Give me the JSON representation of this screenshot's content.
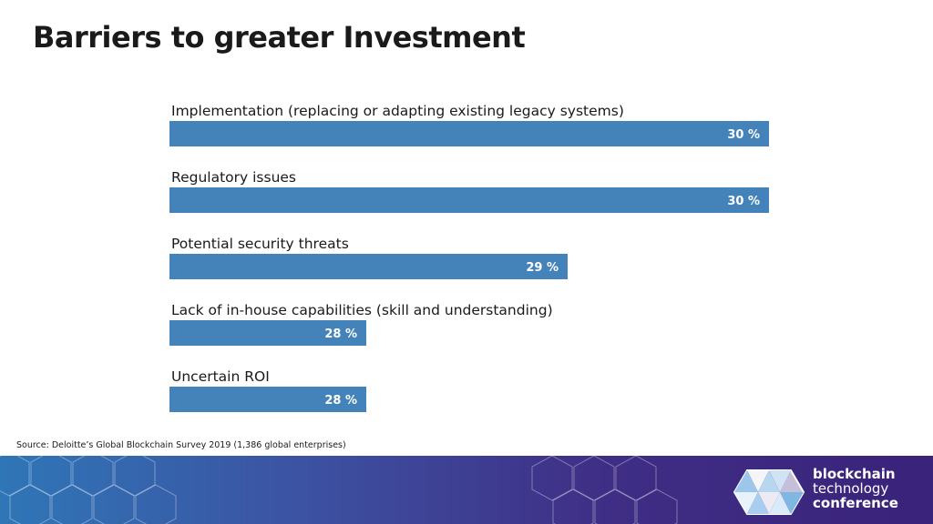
{
  "slide": {
    "title": "Barriers to greater Investment",
    "source": "Source: Deloitte’s Global Blockchain Survey 2019 (1,386 global enterprises)"
  },
  "chart_data": {
    "type": "bar",
    "orientation": "horizontal",
    "categories": [
      "Implementation (replacing or adapting existing legacy systems)",
      "Regulatory issues",
      "Potential security threats",
      "Lack of in-house capabilities (skill and understanding)",
      "Uncertain ROI"
    ],
    "values": [
      30,
      30,
      29,
      28,
      28
    ],
    "value_labels": [
      "30 %",
      "30 %",
      "29 %",
      "28 %",
      "28 %"
    ],
    "bar_color": "#4483b9",
    "xlim": [
      27,
      30
    ],
    "grid": false,
    "legend": "none"
  },
  "logo": {
    "line1": "blockchain",
    "line2": "technology",
    "line3": "conference"
  },
  "colors": {
    "footer_left": "#2f76b7",
    "footer_right": "#3a237a"
  }
}
